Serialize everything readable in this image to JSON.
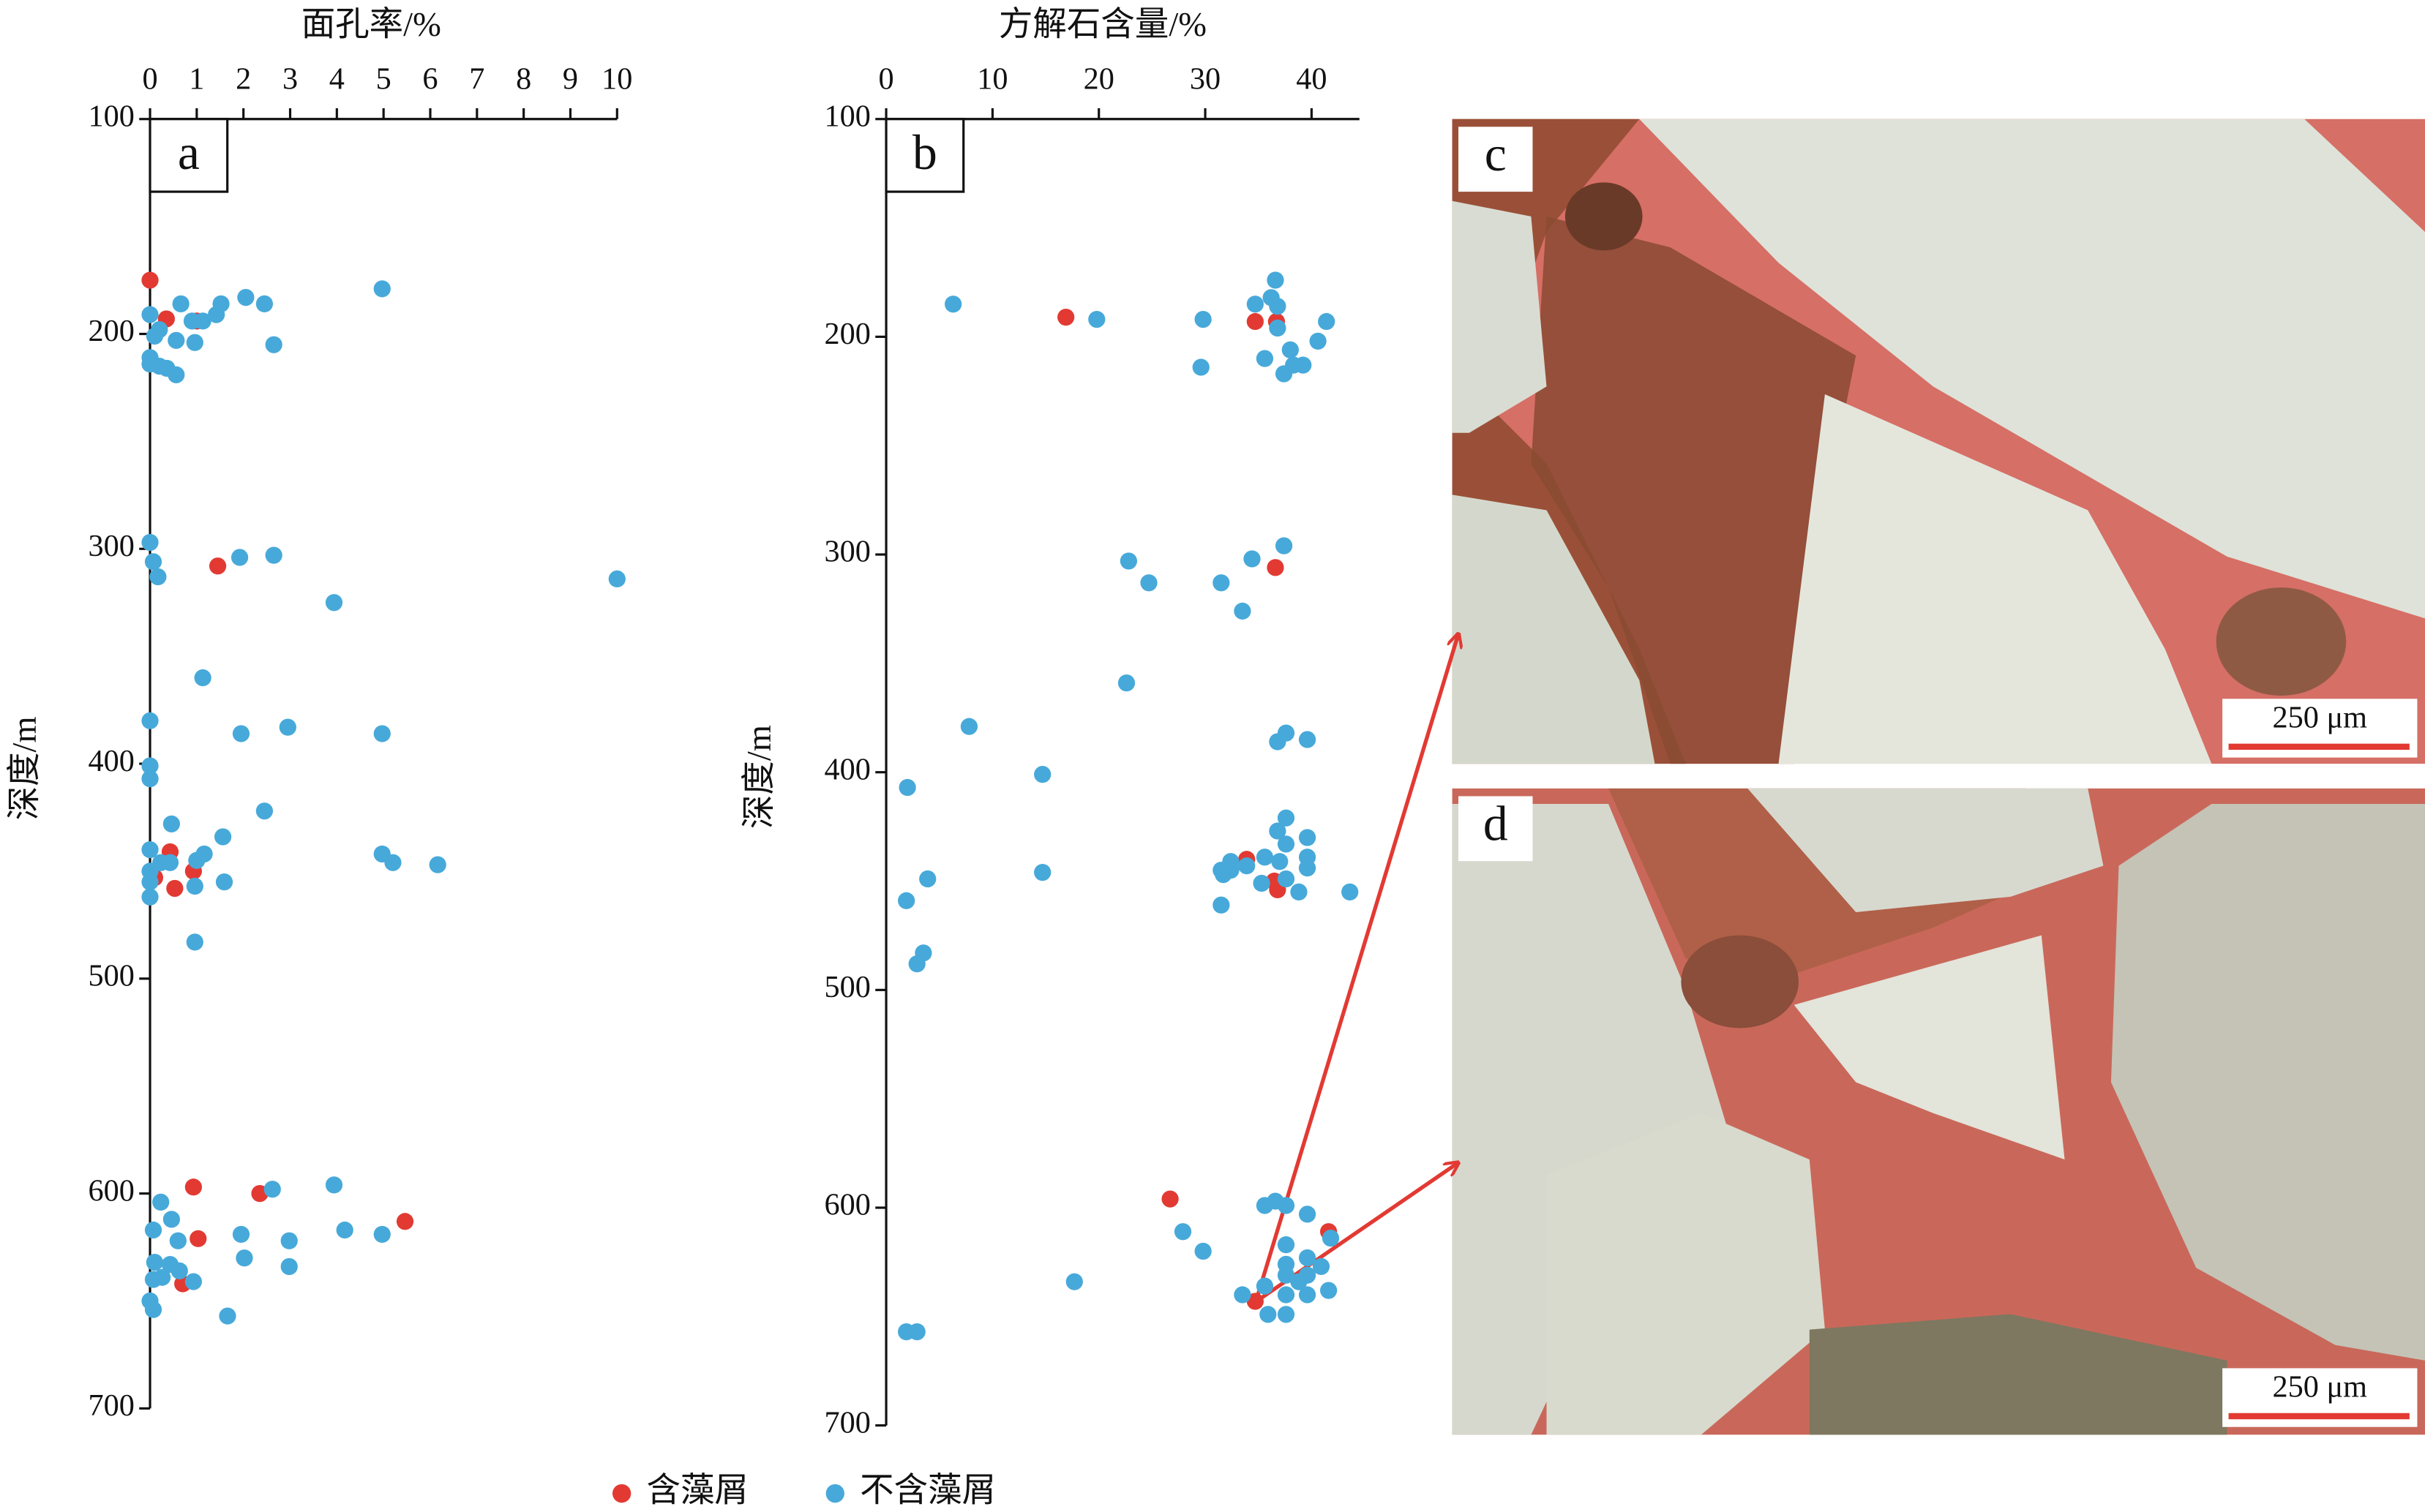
{
  "chart_data": [
    {
      "type": "scatter",
      "panel_label": "a",
      "x_label": "面孔率/%",
      "y_label": "深度/m",
      "xlim": [
        0,
        10
      ],
      "xticks": [
        0,
        1,
        2,
        3,
        4,
        5,
        6,
        7,
        8,
        9,
        10
      ],
      "ylim": [
        100,
        700
      ],
      "yticks": [
        100,
        200,
        300,
        400,
        500,
        600,
        700
      ],
      "y_reversed": true,
      "series": [
        {
          "name": "含藻屑",
          "color": "#e23a33",
          "x": [
            0,
            0.35,
            1.0,
            1.45,
            0.43,
            0.1,
            0.93,
            0.53,
            0.93,
            2.35,
            5.46,
            1.03,
            0.7
          ],
          "values": [
            175,
            193,
            194,
            308,
            441,
            453,
            450,
            458,
            597,
            600,
            613,
            621,
            642
          ]
        },
        {
          "name": "不含藻屑",
          "color": "#47a9d9",
          "x": [
            4.97,
            0,
            0.66,
            2.05,
            2.45,
            1.52,
            1.42,
            1.13,
            0.9,
            0.2,
            0.1,
            0.56,
            0.96,
            2.65,
            0,
            0,
            0.2,
            0.36,
            0.56,
            0,
            1.92,
            2.65,
            0.07,
            0.17,
            10,
            3.94,
            1.13,
            0,
            1.95,
            2.95,
            4.97,
            0,
            0,
            2.45,
            0.46,
            1.56,
            0,
            0.43,
            0.23,
            1.16,
            1.0,
            4.97,
            5.2,
            6.16,
            0,
            0,
            0.96,
            1.59,
            0,
            0.96,
            0.23,
            2.62,
            3.94,
            0.46,
            0.07,
            4.17,
            1.95,
            4.97,
            0.6,
            2.98,
            2.02,
            0.1,
            0.43,
            0.63,
            2.98,
            0.07,
            0.26,
            0.93,
            0,
            0.07,
            1.66
          ],
          "values": [
            179,
            191,
            186,
            183,
            186,
            186,
            191,
            194,
            194,
            198,
            201,
            203,
            204,
            205,
            211,
            214,
            215,
            216,
            219,
            297,
            304,
            303,
            306,
            313,
            314,
            325,
            360,
            380,
            386,
            383,
            386,
            401,
            407,
            422,
            428,
            434,
            440,
            446,
            446,
            442,
            445,
            442,
            446,
            447,
            450,
            455,
            457,
            455,
            462,
            483,
            604,
            598,
            596,
            612,
            617,
            617,
            619,
            619,
            622,
            622,
            630,
            632,
            633,
            636,
            634,
            640,
            639,
            641,
            650,
            654,
            657
          ]
        }
      ]
    },
    {
      "type": "scatter",
      "panel_label": "b",
      "x_label": "方解石含量/%",
      "y_label": "深度/m",
      "xlim": [
        0,
        44.5
      ],
      "xticks": [
        0,
        10,
        20,
        30,
        40
      ],
      "ylim": [
        100,
        700
      ],
      "yticks": [
        100,
        200,
        300,
        400,
        500,
        600,
        700
      ],
      "y_reversed": true,
      "series": [
        {
          "name": "含藻屑",
          "color": "#e23a33",
          "x": [
            16.9,
            34.7,
            36.7,
            36.6,
            33.9,
            36.5,
            36.8,
            26.7,
            41.6,
            34.7
          ],
          "values": [
            191,
            193,
            193,
            306,
            440,
            450,
            454,
            596,
            611,
            643
          ]
        },
        {
          "name": "不含藻屑",
          "color": "#47a9d9",
          "x": [
            6.3,
            19.8,
            29.8,
            36.6,
            34.7,
            36.2,
            36.8,
            36.8,
            41.4,
            40.6,
            38,
            35.6,
            39.2,
            38.3,
            37.4,
            29.6,
            22.8,
            24.7,
            34.4,
            37.4,
            31.5,
            33.5,
            22.6,
            7.8,
            36.8,
            37.6,
            39.6,
            14.7,
            2,
            37.6,
            36.8,
            39.6,
            37.6,
            35.6,
            37,
            32.4,
            33.9,
            39.6,
            39.6,
            31.5,
            32.4,
            31.7,
            14.7,
            3.9,
            37.6,
            35.3,
            38.8,
            43.6,
            1.9,
            31.5,
            3.5,
            2.9,
            36.6,
            35.6,
            37.6,
            39.6,
            27.9,
            37.6,
            41.8,
            39.6,
            37.6,
            29.8,
            40.9,
            37.6,
            39.6,
            38.8,
            35.6,
            41.6,
            17.7,
            33.5,
            37.6,
            39.6,
            35.9,
            37.6,
            1.9,
            2.9
          ],
          "values": [
            185,
            192,
            192,
            174,
            185,
            182,
            186,
            196,
            193,
            202,
            206,
            210,
            213,
            213,
            217,
            214,
            303,
            313,
            302,
            296,
            313,
            326,
            359,
            379,
            386,
            382,
            385,
            401,
            407,
            421,
            427,
            430,
            433,
            439,
            441,
            441,
            443,
            439,
            444,
            445,
            445,
            447,
            446,
            449,
            449,
            451,
            455,
            455,
            459,
            461,
            483,
            488,
            597,
            599,
            599,
            603,
            611,
            617,
            614,
            623,
            626,
            620,
            627,
            631,
            631,
            634,
            636,
            638,
            634,
            640,
            640,
            640,
            649,
            649,
            657,
            657
          ]
        }
      ]
    }
  ],
  "photos": [
    {
      "label": "c",
      "scale_bar": "250 μm"
    },
    {
      "label": "d",
      "scale_bar": "250 μm"
    }
  ]
}
